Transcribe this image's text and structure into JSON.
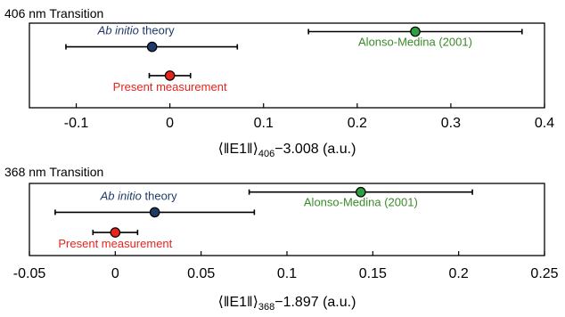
{
  "colors": {
    "theory": "#1f3a68",
    "alonso": "#2e9e3e",
    "present": "#e8231c",
    "alonso_text": "#3a8a2a",
    "present_text": "#e8231c",
    "theory_text": "#1f3a68"
  },
  "chart_data": [
    {
      "type": "scatter",
      "title": "406 nm Transition",
      "xlabel": {
        "prefix": "⟨‖E1‖⟩",
        "subscript": "406",
        "suffix": "−3.008 (a.u.)"
      },
      "xlim": [
        -0.15,
        0.4
      ],
      "xticks": [
        -0.1,
        0,
        0.1,
        0.2,
        0.3,
        0.4
      ],
      "xtick_labels": [
        "-0.1",
        "0",
        "0.1",
        "0.2",
        "0.3",
        "0.4"
      ],
      "series": [
        {
          "key": "theory",
          "label_italic": "Ab initio",
          "label_rest": " theory",
          "x": -0.019,
          "xerr_low": 0.092,
          "xerr_high": 0.091,
          "level": 0.72
        },
        {
          "key": "alonso",
          "label_italic": "",
          "label_rest": "Alonso-Medina (2001)",
          "x": 0.262,
          "xerr_low": 0.114,
          "xerr_high": 0.114,
          "level": 0.9
        },
        {
          "key": "present",
          "label_italic": "",
          "label_rest": "Present measurement",
          "x": 0.0,
          "xerr_low": 0.022,
          "xerr_high": 0.022,
          "level": 0.38
        }
      ]
    },
    {
      "type": "scatter",
      "title": "368 nm Transition",
      "xlabel": {
        "prefix": "⟨‖E1‖⟩",
        "subscript": "368",
        "suffix": "−1.897 (a.u.)"
      },
      "xlim": [
        -0.05,
        0.25
      ],
      "xticks": [
        -0.05,
        0,
        0.05,
        0.1,
        0.15,
        0.2,
        0.25
      ],
      "xtick_labels": [
        "-0.05",
        "0",
        "0.05",
        "0.1",
        "0.15",
        "0.2",
        "0.25"
      ],
      "series": [
        {
          "key": "theory",
          "label_italic": "Ab initio",
          "label_rest": " theory",
          "x": 0.023,
          "xerr_low": 0.058,
          "xerr_high": 0.058,
          "level": 0.6
        },
        {
          "key": "alonso",
          "label_italic": "",
          "label_rest": "Alonso-Medina (2001)",
          "x": 0.143,
          "xerr_low": 0.065,
          "xerr_high": 0.065,
          "level": 0.88
        },
        {
          "key": "present",
          "label_italic": "",
          "label_rest": "Present measurement",
          "x": 0.0,
          "xerr_low": 0.013,
          "xerr_high": 0.013,
          "level": 0.32
        }
      ]
    }
  ]
}
